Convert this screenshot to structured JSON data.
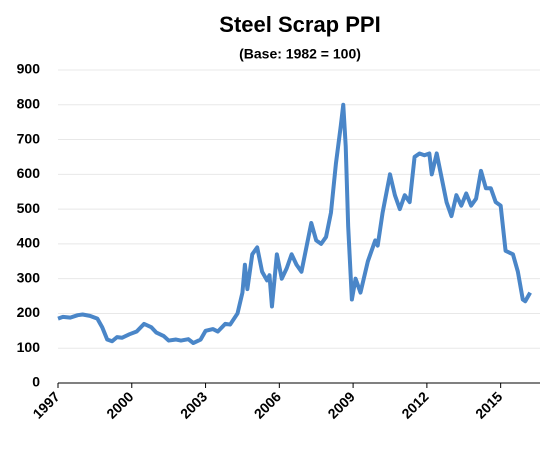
{
  "chart_data": {
    "type": "line",
    "title": "Steel Scrap PPI",
    "subtitle": "(Base: 1982 = 100)",
    "x": [
      1997.0,
      1997.2,
      1997.5,
      1997.8,
      1998.0,
      1998.3,
      1998.6,
      1998.8,
      1999.0,
      1999.2,
      1999.4,
      1999.6,
      1999.9,
      2000.2,
      2000.5,
      2000.8,
      2001.0,
      2001.3,
      2001.5,
      2001.8,
      2002.0,
      2002.3,
      2002.5,
      2002.8,
      2003.0,
      2003.3,
      2003.5,
      2003.8,
      2004.0,
      2004.3,
      2004.5,
      2004.6,
      2004.7,
      2004.9,
      2005.1,
      2005.3,
      2005.5,
      2005.6,
      2005.7,
      2005.9,
      2006.1,
      2006.3,
      2006.5,
      2006.7,
      2006.9,
      2007.1,
      2007.3,
      2007.5,
      2007.7,
      2007.9,
      2008.1,
      2008.3,
      2008.5,
      2008.6,
      2008.7,
      2008.8,
      2008.95,
      2009.1,
      2009.3,
      2009.6,
      2009.9,
      2010.0,
      2010.2,
      2010.5,
      2010.7,
      2010.9,
      2011.1,
      2011.3,
      2011.5,
      2011.7,
      2011.9,
      2012.1,
      2012.2,
      2012.4,
      2012.6,
      2012.8,
      2013.0,
      2013.2,
      2013.4,
      2013.6,
      2013.8,
      2014.0,
      2014.2,
      2014.4,
      2014.6,
      2014.8,
      2015.0,
      2015.2,
      2015.5,
      2015.7,
      2015.9,
      2016.0,
      2016.2
    ],
    "series": [
      {
        "name": "Steel Scrap PPI",
        "color": "#4a86c8",
        "values": [
          185,
          190,
          188,
          195,
          197,
          193,
          185,
          160,
          125,
          120,
          132,
          130,
          140,
          148,
          170,
          160,
          145,
          135,
          122,
          125,
          122,
          126,
          115,
          125,
          150,
          155,
          148,
          170,
          168,
          200,
          260,
          340,
          270,
          370,
          390,
          320,
          295,
          310,
          220,
          370,
          300,
          330,
          370,
          340,
          320,
          390,
          460,
          410,
          400,
          420,
          490,
          630,
          740,
          800,
          680,
          450,
          240,
          300,
          260,
          350,
          410,
          395,
          490,
          600,
          540,
          500,
          540,
          520,
          650,
          660,
          655,
          660,
          600,
          660,
          590,
          520,
          480,
          540,
          510,
          545,
          510,
          530,
          610,
          560,
          560,
          520,
          510,
          380,
          370,
          320,
          240,
          235,
          260
        ]
      }
    ],
    "xlim": [
      1997,
      2016.6
    ],
    "xticks": [
      1997,
      2000,
      2003,
      2006,
      2009,
      2012,
      2015
    ],
    "ylim": [
      0,
      900
    ],
    "yticks": [
      0,
      100,
      200,
      300,
      400,
      500,
      600,
      700,
      800,
      900
    ],
    "grid": true
  }
}
